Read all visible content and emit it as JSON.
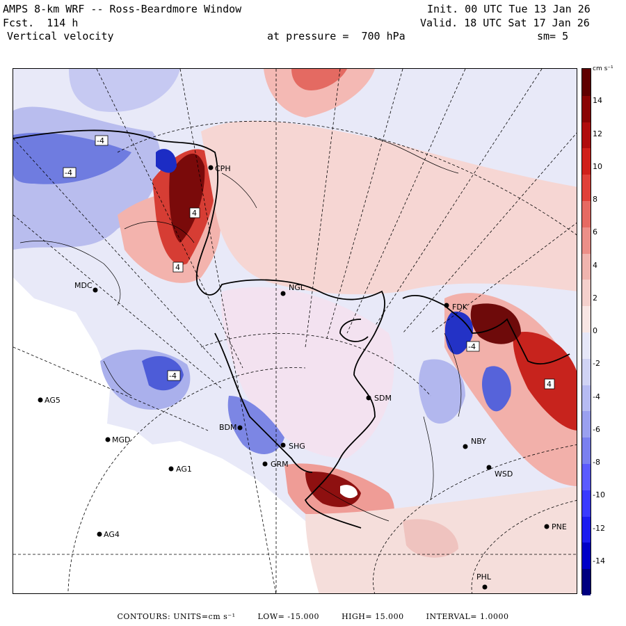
{
  "header": {
    "title": "AMPS 8-km WRF -- Ross-Beardmore Window",
    "forecast": "Fcst.  114 h",
    "field": "Vertical velocity",
    "init": "Init. 00 UTC Tue 13 Jan 26",
    "valid": "Valid. 18 UTC Sat 17 Jan 26",
    "pressure_label": "at pressure =  700 hPa",
    "smoothing": "sm= 5"
  },
  "colorbar": {
    "units_label": "cm s⁻¹",
    "range": [
      -16,
      16
    ],
    "ticks": [
      "14",
      "12",
      "10",
      "8",
      "6",
      "4",
      "2",
      "0",
      "-2",
      "-4",
      "-6",
      "-8",
      "-10",
      "-12",
      "-14"
    ],
    "tick_values": [
      14,
      12,
      10,
      8,
      6,
      4,
      2,
      0,
      -2,
      -4,
      -6,
      -8,
      -10,
      -12,
      -14
    ],
    "colors": {
      "strong_positive": "#6b0000",
      "positive": "#e03a3a",
      "weak_positive": "#f6c9c6",
      "neutral": "#ffffff",
      "weak_negative": "#d6d8f2",
      "negative": "#5a6ae0",
      "strong_negative": "#000080"
    }
  },
  "stations": [
    {
      "id": "CPH"
    },
    {
      "id": "MDC"
    },
    {
      "id": "NGL"
    },
    {
      "id": "FDK"
    },
    {
      "id": "AG5"
    },
    {
      "id": "SDM"
    },
    {
      "id": "BDM"
    },
    {
      "id": "MGD"
    },
    {
      "id": "NBY"
    },
    {
      "id": "AG1"
    },
    {
      "id": "WSD"
    },
    {
      "id": "AG4"
    },
    {
      "id": "PNE"
    },
    {
      "id": "PHL"
    },
    {
      "id": "SHG"
    },
    {
      "id": "GRM"
    }
  ],
  "contour_labels": [
    "-4",
    "-4",
    "4",
    "4",
    "-4",
    "-4",
    "4"
  ],
  "footer": {
    "contours": "CONTOURS:  UNITS=cm s⁻¹",
    "low": "LOW= -15.000",
    "high": "HIGH=  15.000",
    "interval": "INTERVAL=   1.0000"
  }
}
